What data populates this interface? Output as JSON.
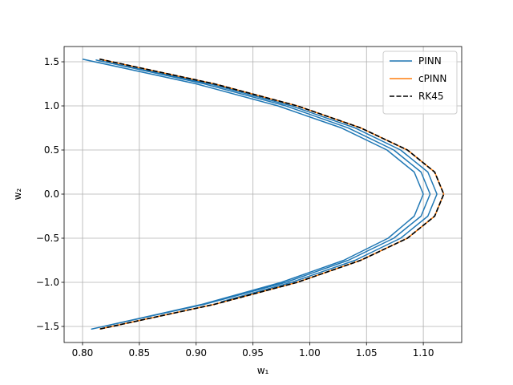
{
  "chart_data": {
    "type": "line",
    "xlabel": "w₁",
    "ylabel": "w₂",
    "xlim": [
      0.7838,
      1.1338
    ],
    "ylim": [
      -1.682,
      1.673
    ],
    "xticks": [
      {
        "value": 0.8,
        "label": "0.80"
      },
      {
        "value": 0.85,
        "label": "0.85"
      },
      {
        "value": 0.9,
        "label": "0.90"
      },
      {
        "value": 0.95,
        "label": "0.95"
      },
      {
        "value": 1.0,
        "label": "1.00"
      },
      {
        "value": 1.05,
        "label": "1.05"
      },
      {
        "value": 1.1,
        "label": "1.10"
      }
    ],
    "yticks": [
      {
        "value": -1.5,
        "label": "−1.5"
      },
      {
        "value": -1.0,
        "label": "−1.0"
      },
      {
        "value": -0.5,
        "label": "−0.5"
      },
      {
        "value": 0,
        "label": "0.0"
      },
      {
        "value": 0.5,
        "label": "0.5"
      },
      {
        "value": 1.0,
        "label": "1.0"
      },
      {
        "value": 1.5,
        "label": "1.5"
      }
    ],
    "grid": true,
    "legend": "upper right",
    "series": [
      {
        "name": "PINN",
        "color": "#1f77b4",
        "dash": "solid",
        "x": [
          0.8,
          0.9,
          0.972,
          1.028,
          1.068,
          1.092,
          1.1,
          1.092,
          1.069,
          1.03,
          0.975,
          0.905,
          0.808,
          0.907,
          0.979,
          1.034,
          1.074,
          1.098,
          1.106,
          1.098,
          1.074,
          1.034,
          0.979,
          0.907,
          0.812,
          0.912,
          0.984,
          1.04,
          1.08,
          1.104,
          1.112,
          1.104,
          1.08,
          1.04,
          0.984,
          0.922
        ],
        "y": [
          1.53,
          1.25,
          1.0,
          0.75,
          0.5,
          0.25,
          0,
          -0.25,
          -0.5,
          -0.75,
          -1.0,
          -1.25,
          -1.53,
          -1.25,
          -1.0,
          -0.75,
          -0.5,
          -0.25,
          0,
          0.25,
          0.5,
          0.75,
          1.0,
          1.25,
          1.52,
          1.25,
          1.0,
          0.75,
          0.5,
          0.25,
          0,
          -0.25,
          -0.5,
          -0.75,
          -1.0,
          -1.22
        ]
      },
      {
        "name": "cPINN",
        "color": "#ff7f0e",
        "dash": "solid",
        "x": [
          0.815,
          0.916,
          0.989,
          1.045,
          1.086,
          1.11,
          1.118,
          1.11,
          1.086,
          1.045,
          0.989,
          0.916,
          0.815
        ],
        "y": [
          1.53,
          1.25,
          1.0,
          0.75,
          0.5,
          0.25,
          0,
          -0.25,
          -0.5,
          -0.75,
          -1.0,
          -1.25,
          -1.53
        ]
      },
      {
        "name": "RK45",
        "color": "#000000",
        "dash": "dashed",
        "x": [
          0.815,
          0.916,
          0.989,
          1.045,
          1.086,
          1.11,
          1.118,
          1.11,
          1.086,
          1.045,
          0.989,
          0.916,
          0.815
        ],
        "y": [
          1.53,
          1.25,
          1.0,
          0.75,
          0.5,
          0.25,
          0,
          -0.25,
          -0.5,
          -0.75,
          -1.0,
          -1.25,
          -1.53
        ]
      }
    ]
  }
}
